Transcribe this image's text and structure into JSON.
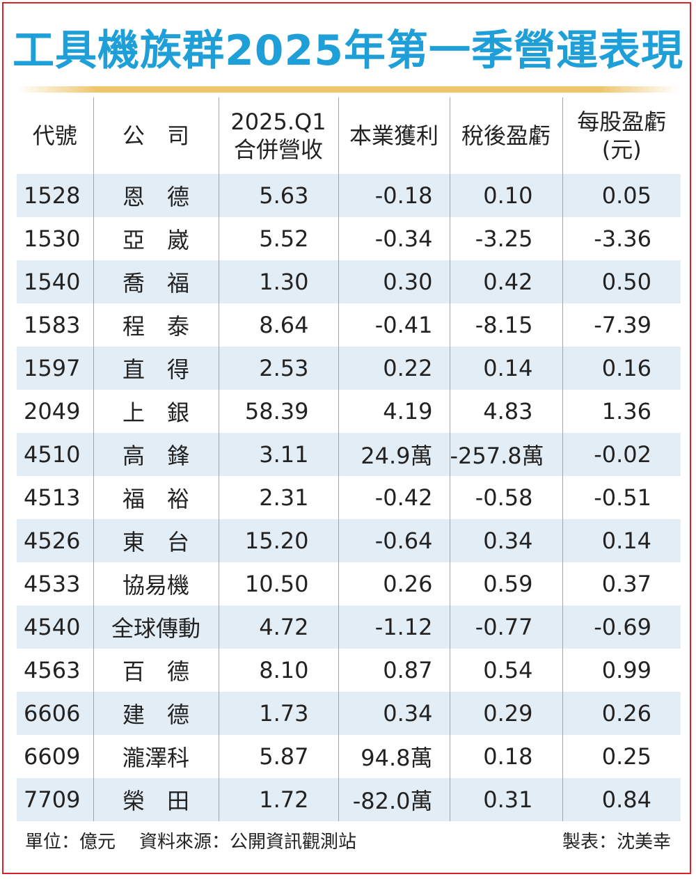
{
  "title": "工具機族群2025年第一季營運表現",
  "chart_data": {
    "type": "table",
    "columns": [
      {
        "line1": "代號",
        "line2": ""
      },
      {
        "line1": "公　司",
        "line2": ""
      },
      {
        "line1": "2025.Q1",
        "line2": "合併營收"
      },
      {
        "line1": "本業獲利",
        "line2": ""
      },
      {
        "line1": "稅後盈虧",
        "line2": ""
      },
      {
        "line1": "每股盈虧",
        "line2": "(元)"
      }
    ],
    "rows": [
      [
        "1528",
        "恩　德",
        "5.63",
        "-0.18",
        "0.10",
        "0.05"
      ],
      [
        "1530",
        "亞　崴",
        "5.52",
        "-0.34",
        "-3.25",
        "-3.36"
      ],
      [
        "1540",
        "喬　福",
        "1.30",
        "0.30",
        "0.42",
        "0.50"
      ],
      [
        "1583",
        "程　泰",
        "8.64",
        "-0.41",
        "-8.15",
        "-7.39"
      ],
      [
        "1597",
        "直　得",
        "2.53",
        "0.22",
        "0.14",
        "0.16"
      ],
      [
        "2049",
        "上　銀",
        "58.39",
        "4.19",
        "4.83",
        "1.36"
      ],
      [
        "4510",
        "高　鋒",
        "3.11",
        "24.9萬",
        "-257.8萬",
        "-0.02"
      ],
      [
        "4513",
        "福　裕",
        "2.31",
        "-0.42",
        "-0.58",
        "-0.51"
      ],
      [
        "4526",
        "東　台",
        "15.20",
        "-0.64",
        "0.34",
        "0.14"
      ],
      [
        "4533",
        "協易機",
        "10.50",
        "0.26",
        "0.59",
        "0.37"
      ],
      [
        "4540",
        "全球傳動",
        "4.72",
        "-1.12",
        "-0.77",
        "-0.69"
      ],
      [
        "4563",
        "百　德",
        "8.10",
        "0.87",
        "0.54",
        "0.99"
      ],
      [
        "6606",
        "建　德",
        "1.73",
        "0.34",
        "0.29",
        "0.26"
      ],
      [
        "6609",
        "瀧澤科",
        "5.87",
        "94.8萬",
        "0.18",
        "0.25"
      ],
      [
        "7709",
        "榮　田",
        "1.72",
        "-82.0萬",
        "0.31",
        "0.84"
      ]
    ]
  },
  "footer": {
    "unit": "單位：億元",
    "source": "資料來源：公開資訊觀測站",
    "credit": "製表：沈美幸"
  },
  "colors": {
    "title": "#1e9fd8",
    "border": "#d9222a",
    "rule": "#efc56b",
    "stripe": "#e3edf5",
    "divider": "#9fa5ab"
  }
}
